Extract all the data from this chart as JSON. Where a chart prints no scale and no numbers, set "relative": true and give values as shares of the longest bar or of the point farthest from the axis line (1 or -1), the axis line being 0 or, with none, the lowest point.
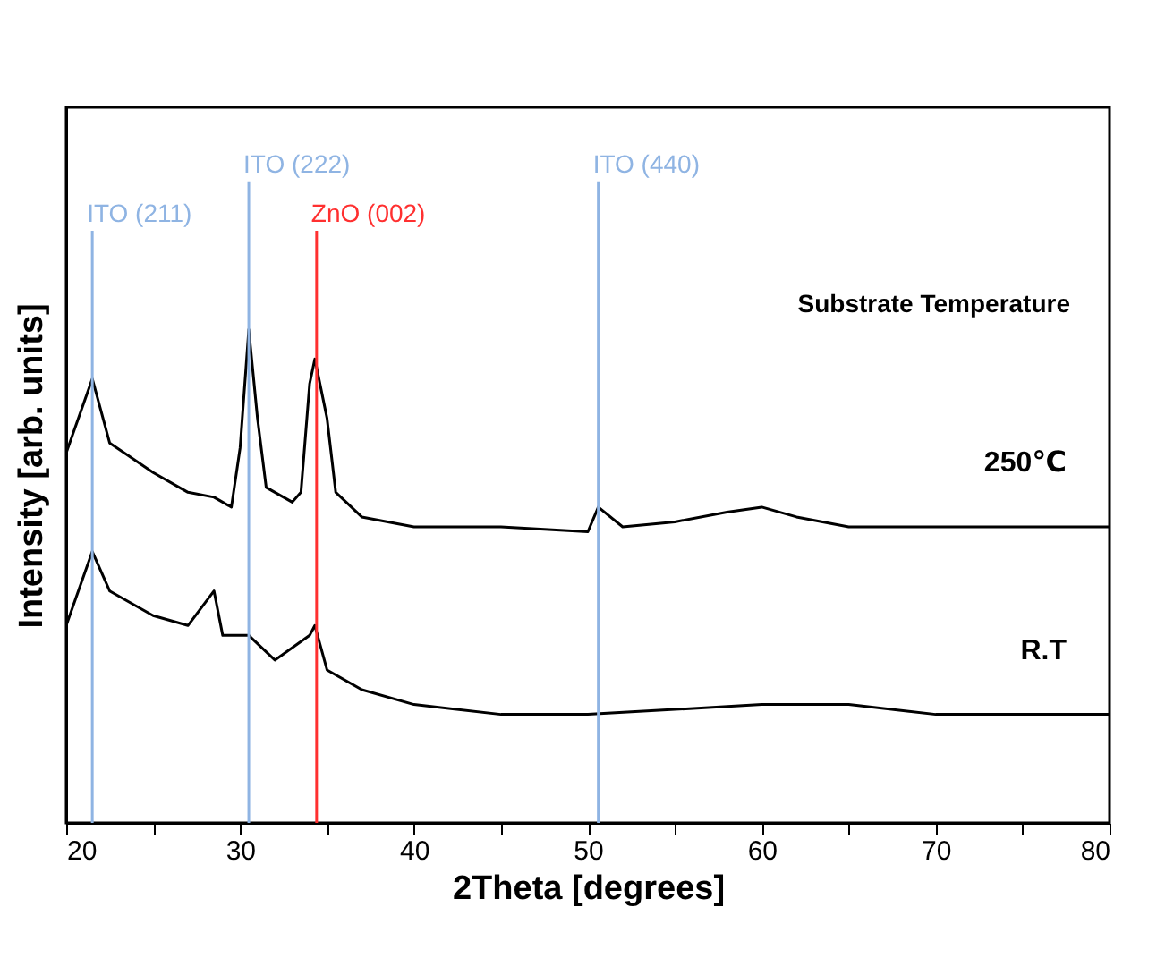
{
  "chart_data": {
    "type": "line",
    "relative": true,
    "xlabel": "2Theta [degrees]",
    "ylabel": "Intensity [arb. units]",
    "xlim": [
      20,
      80
    ],
    "xticks": [
      20,
      {
        "value": 25,
        "label": null
      },
      30,
      {
        "value": 35,
        "label": null
      },
      40,
      {
        "value": 45,
        "label": null
      },
      50,
      {
        "value": 55,
        "label": null
      },
      60,
      {
        "value": 65,
        "label": null
      },
      70,
      {
        "value": 75,
        "label": null
      },
      80
    ],
    "grid": false,
    "legend": false,
    "annotations": [
      "Substrate Temperature"
    ],
    "series": [
      {
        "name": "250℃",
        "color": "#000000",
        "x": [
          20,
          21.5,
          22.5,
          25,
          27,
          28.5,
          29.5,
          30,
          30.5,
          31,
          31.5,
          33,
          33.5,
          34,
          34.3,
          35,
          35.5,
          37,
          40,
          45,
          50,
          50.6,
          52,
          55,
          58,
          60,
          62,
          65,
          70,
          75,
          80
        ],
        "values": [
          0.75,
          0.9,
          0.77,
          0.71,
          0.67,
          0.66,
          0.64,
          0.76,
          1,
          0.82,
          0.68,
          0.65,
          0.67,
          0.89,
          0.94,
          0.82,
          0.67,
          0.62,
          0.6,
          0.6,
          0.59,
          0.64,
          0.6,
          0.61,
          0.63,
          0.64,
          0.62,
          0.6,
          0.6,
          0.6,
          0.6
        ]
      },
      {
        "name": "R.T",
        "color": "#000000",
        "x": [
          20,
          21.5,
          22.5,
          25,
          27,
          28.5,
          29,
          30.5,
          32,
          34,
          34.3,
          35,
          37,
          40,
          45,
          50,
          55,
          60,
          65,
          70,
          75,
          80
        ],
        "values": [
          0.4,
          0.55,
          0.47,
          0.42,
          0.4,
          0.47,
          0.38,
          0.38,
          0.33,
          0.38,
          0.4,
          0.31,
          0.27,
          0.24,
          0.22,
          0.22,
          0.23,
          0.24,
          0.24,
          0.22,
          0.22,
          0.22
        ]
      }
    ],
    "ref_lines": [
      {
        "axis": "x",
        "value": 21.5,
        "label": "ITO (211)",
        "color": "#8fb4e3"
      },
      {
        "axis": "x",
        "value": 30.5,
        "label": "ITO (222)",
        "color": "#8fb4e3"
      },
      {
        "axis": "x",
        "value": 34.4,
        "label": "ZnO (002)",
        "color": "#ff3030"
      },
      {
        "axis": "x",
        "value": 50.6,
        "label": "ITO (440)",
        "color": "#8fb4e3"
      }
    ]
  }
}
